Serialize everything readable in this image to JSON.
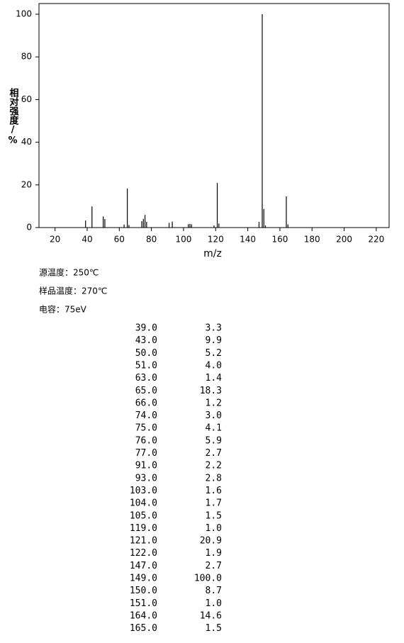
{
  "chart_data": {
    "type": "bar",
    "x_label": "m/z",
    "y_label": "相对强度/%",
    "x": [
      39,
      43,
      50,
      51,
      63,
      65,
      66,
      74,
      75,
      76,
      77,
      91,
      93,
      103,
      104,
      105,
      119,
      121,
      122,
      147,
      149,
      150,
      151,
      164,
      165
    ],
    "values": [
      3.3,
      9.9,
      5.2,
      4.0,
      1.4,
      18.3,
      1.2,
      3.0,
      4.1,
      5.9,
      2.7,
      2.2,
      2.8,
      1.6,
      1.7,
      1.5,
      1.0,
      20.9,
      1.9,
      2.7,
      100.0,
      8.7,
      1.0,
      14.6,
      1.5
    ],
    "color": "#000000",
    "xlim": [
      10,
      228
    ],
    "xticks": [
      20,
      40,
      60,
      80,
      100,
      120,
      140,
      160,
      180,
      200,
      220
    ],
    "ylim": [
      0,
      105
    ],
    "yticks": [
      0,
      20,
      40,
      60,
      80,
      100
    ]
  },
  "info": [
    "源温度：250℃",
    "样品温度：270℃",
    "电容：75eV"
  ],
  "table": {
    "rows": [
      [
        "39.0",
        "3.3"
      ],
      [
        "43.0",
        "9.9"
      ],
      [
        "50.0",
        "5.2"
      ],
      [
        "51.0",
        "4.0"
      ],
      [
        "63.0",
        "1.4"
      ],
      [
        "65.0",
        "18.3"
      ],
      [
        "66.0",
        "1.2"
      ],
      [
        "74.0",
        "3.0"
      ],
      [
        "75.0",
        "4.1"
      ],
      [
        "76.0",
        "5.9"
      ],
      [
        "77.0",
        "2.7"
      ],
      [
        "91.0",
        "2.2"
      ],
      [
        "93.0",
        "2.8"
      ],
      [
        "103.0",
        "1.6"
      ],
      [
        "104.0",
        "1.7"
      ],
      [
        "105.0",
        "1.5"
      ],
      [
        "119.0",
        "1.0"
      ],
      [
        "121.0",
        "20.9"
      ],
      [
        "122.0",
        "1.9"
      ],
      [
        "147.0",
        "2.7"
      ],
      [
        "149.0",
        "100.0"
      ],
      [
        "150.0",
        "8.7"
      ],
      [
        "151.0",
        "1.0"
      ],
      [
        "164.0",
        "14.6"
      ],
      [
        "165.0",
        "1.5"
      ]
    ]
  }
}
